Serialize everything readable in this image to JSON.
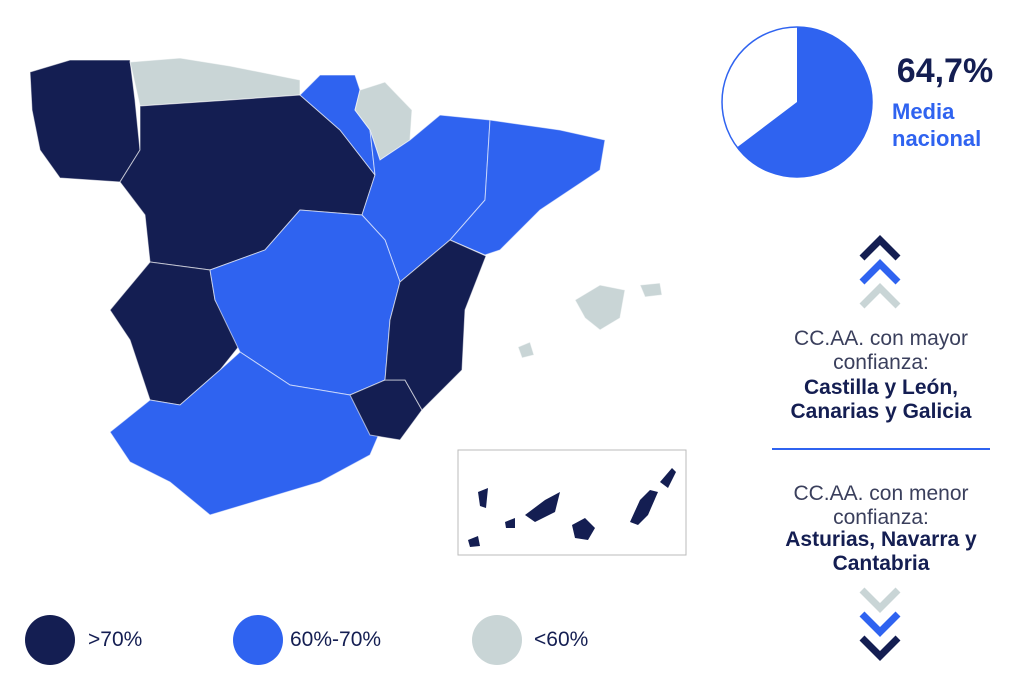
{
  "summary": {
    "value": 64.7,
    "value_label": "64,7%",
    "caption": "Media nacional"
  },
  "highest": {
    "intro": "CC.AA. con mayor confianza:",
    "names": "Castilla y León, Canarias y Galicia"
  },
  "lowest": {
    "intro": "CC.AA. con menor confianza:",
    "names": "Asturias, Navarra y Cantabria"
  },
  "legend": [
    {
      "label": ">70%",
      "color": "#141e52"
    },
    {
      "label": "60%-70%",
      "color": "#2f63f0"
    },
    {
      "label": "<60%",
      "color": "#c9d5d6"
    }
  ]
}
